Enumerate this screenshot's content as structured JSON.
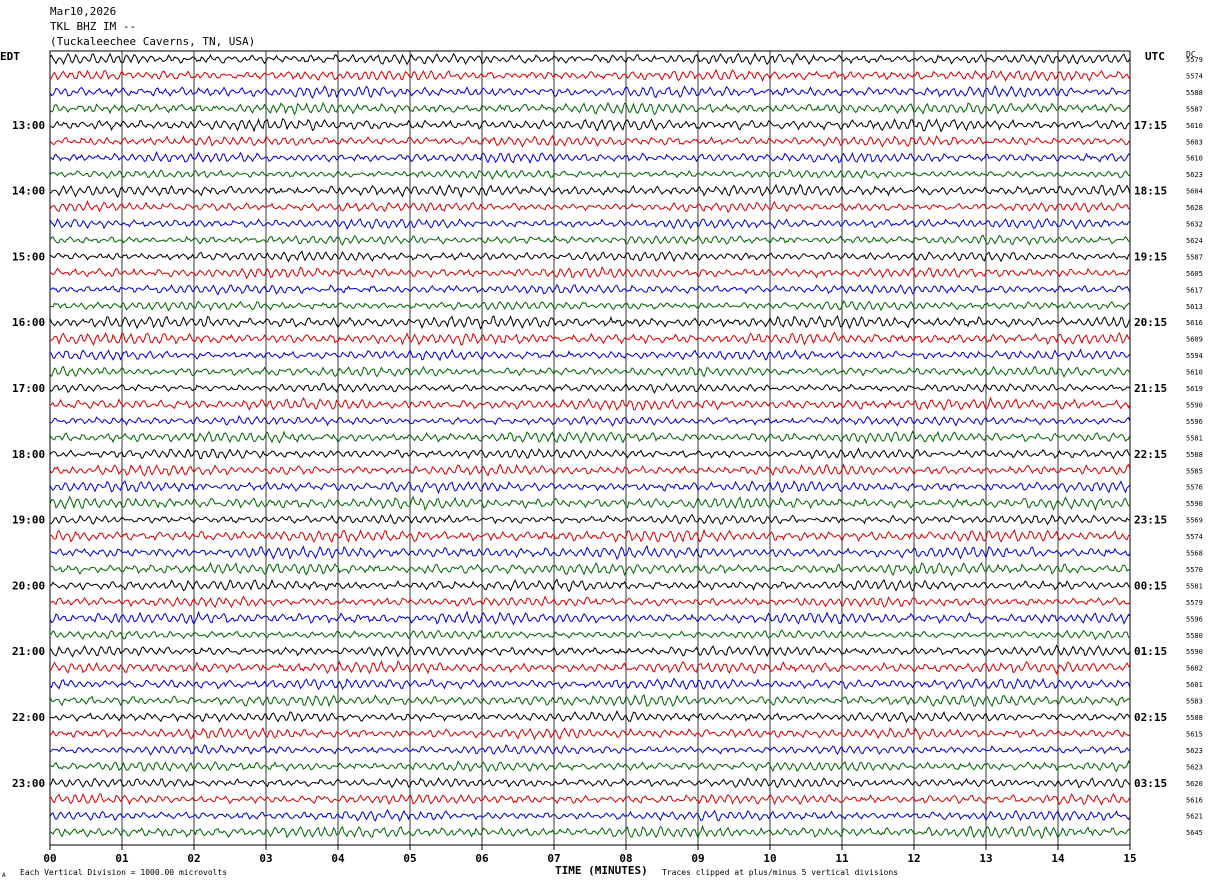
{
  "header": {
    "date": "Mar10,2026",
    "station": "TKL BHZ IM --",
    "location": "(Tuckaleechee Caverns, TN, USA)"
  },
  "left_zone_label": "EDT",
  "right_zone_label": "UTC",
  "dc_label": "DC",
  "footer": {
    "vertical_division": "Each Vertical Division = 1000.00 microvolts",
    "clip_note": "Traces clipped at plus/minus 5 vertical divisions",
    "corner_mark": "A"
  },
  "chart_data": {
    "type": "line",
    "xlabel": "TIME (MINUTES)",
    "x_ticks": [
      "00",
      "01",
      "02",
      "03",
      "04",
      "05",
      "06",
      "07",
      "08",
      "09",
      "10",
      "11",
      "12",
      "13",
      "14",
      "15"
    ],
    "xlim": [
      0,
      15
    ],
    "trace_colors": [
      "#000000",
      "#d40000",
      "#0000cc",
      "#006400"
    ],
    "edt_hour_labels": [
      "13:00",
      "14:00",
      "15:00",
      "16:00",
      "17:00",
      "18:00",
      "19:00",
      "20:00",
      "21:00",
      "22:00",
      "23:00"
    ],
    "utc_hour_labels": [
      "17:15",
      "18:15",
      "19:15",
      "20:15",
      "21:15",
      "22:15",
      "23:15",
      "00:15",
      "01:15",
      "02:15",
      "03:15"
    ],
    "dc_values": [
      "5579",
      "5574",
      "5588",
      "5587",
      "5610",
      "5603",
      "5610",
      "5623",
      "5604",
      "5628",
      "5632",
      "5624",
      "5587",
      "5605",
      "5617",
      "5613",
      "5616",
      "5609",
      "5594",
      "5610",
      "5619",
      "5590",
      "5596",
      "5581",
      "5588",
      "5585",
      "5576",
      "5590",
      "5569",
      "5574",
      "5568",
      "5570",
      "5581",
      "5579",
      "5596",
      "5580",
      "5590",
      "5602",
      "5601",
      "5583",
      "5588",
      "5615",
      "5623",
      "5623",
      "5620",
      "5616",
      "5621",
      "5645"
    ]
  }
}
